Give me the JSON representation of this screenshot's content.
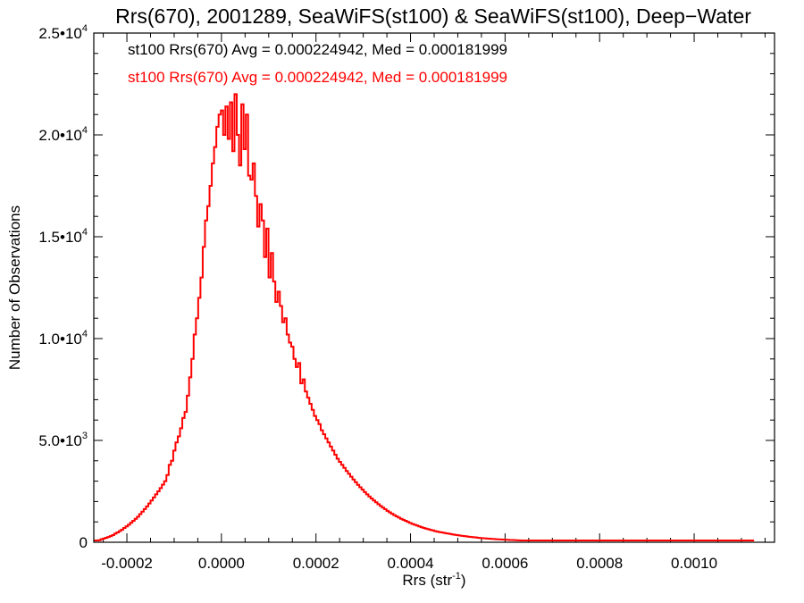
{
  "chart_data": {
    "type": "histogram",
    "title": "Rrs(670), 2001289, SeaWiFS(st100) & SeaWiFS(st100), Deep−Water",
    "xlabel": "Rrs (str",
    "xlabel_sup": "-1",
    "xlabel_tail": ")",
    "ylabel": "Number of Observations",
    "xlim": [
      -0.00027,
      0.00117
    ],
    "ylim": [
      0,
      25000
    ],
    "grid": false,
    "xticks": [
      {
        "value": -0.0002,
        "label": "-0.0002"
      },
      {
        "value": 0.0,
        "label": "0.0000"
      },
      {
        "value": 0.0002,
        "label": "0.0002"
      },
      {
        "value": 0.0004,
        "label": "0.0004"
      },
      {
        "value": 0.0006,
        "label": "0.0006"
      },
      {
        "value": 0.0008,
        "label": "0.0008"
      },
      {
        "value": 0.001,
        "label": "0.0010"
      }
    ],
    "yticks": [
      {
        "value": 0,
        "label": "0"
      },
      {
        "value": 5000,
        "label": "5.0•10",
        "sup": "3"
      },
      {
        "value": 10000,
        "label": "1.0•10",
        "sup": "4"
      },
      {
        "value": 15000,
        "label": "1.5•10",
        "sup": "4"
      },
      {
        "value": 20000,
        "label": "2.0•10",
        "sup": "4"
      },
      {
        "value": 25000,
        "label": "2.5•10",
        "sup": "4"
      }
    ],
    "annotations": [
      {
        "text": "st100 Rrs(670) Avg = 0.000224942, Med = 0.000181999",
        "color": "#000000"
      },
      {
        "text": "st100 Rrs(670) Avg = 0.000224942, Med = 0.000181999",
        "color": "#ff0000"
      }
    ],
    "series": [
      {
        "color": "#ff0000",
        "bin_start": -0.00027,
        "bin_width": 4.8e-06,
        "counts": [
          0,
          0,
          100,
          150,
          180,
          220,
          260,
          300,
          350,
          420,
          480,
          550,
          620,
          700,
          780,
          860,
          960,
          1050,
          1150,
          1250,
          1380,
          1500,
          1630,
          1760,
          1900,
          2050,
          2200,
          2350,
          2500,
          2660,
          2830,
          3000,
          3300,
          3800,
          4000,
          4500,
          4900,
          5200,
          5600,
          6100,
          6400,
          7200,
          8100,
          9000,
          10200,
          11000,
          12000,
          13000,
          14500,
          15800,
          16500,
          17500,
          18600,
          19400,
          20400,
          21000,
          21200,
          20000,
          21400,
          19800,
          21600,
          19200,
          22000,
          20000,
          18500,
          21500,
          19300,
          21000,
          18000,
          17800,
          18600,
          17000,
          15500,
          16600,
          15800,
          14000,
          15400,
          13000,
          14200,
          12800,
          11800,
          12300,
          11600,
          10800,
          11000,
          10200,
          9800,
          9600,
          9000,
          8600,
          8800,
          7800,
          8000,
          7400,
          7100,
          6800,
          6500,
          6200,
          6000,
          5800,
          5500,
          5300,
          5100,
          4900,
          4700,
          4500,
          4300,
          4100,
          3950,
          3800,
          3650,
          3500,
          3360,
          3220,
          3080,
          2950,
          2820,
          2700,
          2580,
          2460,
          2350,
          2250,
          2150,
          2050,
          1960,
          1870,
          1780,
          1700,
          1620,
          1540,
          1470,
          1400,
          1330,
          1270,
          1210,
          1150,
          1100,
          1050,
          1000,
          950,
          900,
          860,
          820,
          780,
          740,
          700,
          670,
          640,
          610,
          580,
          550,
          520,
          500,
          480,
          460,
          440,
          420,
          400,
          380,
          360,
          345,
          330,
          315,
          300,
          285,
          270,
          258,
          246,
          234,
          222,
          210,
          200,
          190,
          182,
          174,
          166,
          158,
          150,
          143,
          136,
          130,
          124,
          118,
          112,
          107,
          102,
          97,
          92,
          88,
          84,
          80,
          76,
          72,
          69,
          66,
          63,
          60,
          57,
          54,
          52,
          50,
          48,
          46,
          44,
          42,
          40,
          38,
          36,
          34,
          32,
          30,
          28,
          27,
          26,
          25,
          24,
          23,
          22,
          21,
          20,
          19,
          18,
          17,
          16,
          15,
          14,
          13,
          12,
          11,
          10,
          10,
          9,
          8,
          8,
          7,
          7,
          6,
          6,
          5,
          5,
          5,
          4,
          4,
          4,
          3,
          3,
          3,
          3,
          2,
          2,
          2,
          2,
          2,
          2,
          1,
          1,
          1,
          1,
          1,
          1,
          1,
          1,
          1,
          1,
          1,
          1,
          1,
          0,
          0,
          0,
          0,
          0,
          0,
          0,
          0,
          0,
          0,
          0,
          0,
          0,
          0,
          0,
          0,
          0,
          0,
          0,
          0,
          0,
          0,
          0,
          0
        ]
      }
    ]
  }
}
